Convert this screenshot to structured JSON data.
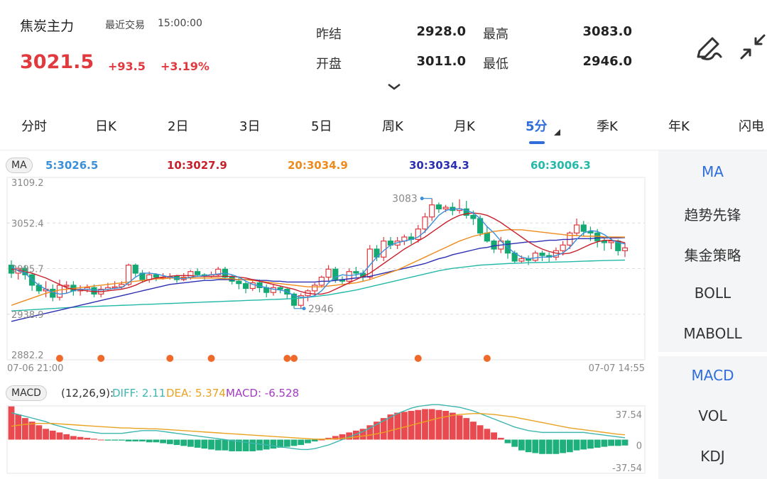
{
  "header": {
    "name": "焦炭主力",
    "last_trade_label": "最近交易",
    "last_trade_time": "15:00:00",
    "price": "3021.5",
    "change": "+93.5",
    "change_pct": "+3.19%"
  },
  "quotes": [
    {
      "label": "昨结",
      "value": "2928.0"
    },
    {
      "label": "最高",
      "value": "3083.0"
    },
    {
      "label": "开盘",
      "value": "3011.0"
    },
    {
      "label": "最低",
      "value": "2946.0"
    }
  ],
  "tabs": [
    "分时",
    "日K",
    "2日",
    "3日",
    "5日",
    "周K",
    "月K",
    "5分",
    "季K",
    "年K",
    "闪电"
  ],
  "active_tab": 7,
  "right_panel": [
    "MA",
    "趋势先锋",
    "集金策略",
    "BOLL",
    "MABOLL",
    "MACD",
    "VOL",
    "KDJ"
  ],
  "colors": {
    "up": "#e0393e",
    "down": "#14a873",
    "accent": "#2f6ddc",
    "ma5": "#3a8fd8",
    "ma10": "#c8202a",
    "ma20": "#ef8a1c",
    "ma30": "#2c2fb3",
    "ma60": "#23b9a8",
    "diff": "#3fb6b0",
    "dea": "#eaa321",
    "macd": "#a43bc4"
  },
  "icons": {
    "edit": "pen-icon",
    "collapse": "collapse-arrows-icon",
    "expand": "chevron-down-icon"
  },
  "chart_data": {
    "type": "candlestick",
    "ma_badge": "MA",
    "ma_legend": [
      {
        "label": "5:3026.5",
        "color": "#3a8fd8"
      },
      {
        "label": "10:3027.9",
        "color": "#c8202a"
      },
      {
        "label": "20:3034.9",
        "color": "#ef8a1c"
      },
      {
        "label": "30:3034.3",
        "color": "#2c2fb3"
      },
      {
        "label": "60:3006.3",
        "color": "#23b9a8"
      }
    ],
    "y_ticks": [
      "3109.2",
      "3052.4",
      "2995.7",
      "2938.9",
      "2882.2"
    ],
    "y_values": [
      3109.2,
      3052.4,
      2995.7,
      2938.9,
      2882.2
    ],
    "x_start": "07-06 21:00",
    "x_end": "07-07 14:55",
    "high_mark": "3083",
    "low_mark": "2946",
    "candles": [
      [
        3000,
        2990,
        3006,
        2984
      ],
      [
        2990,
        2996,
        2998,
        2982
      ],
      [
        2996,
        2988,
        3000,
        2982
      ],
      [
        2988,
        2975,
        2990,
        2968
      ],
      [
        2975,
        2968,
        2978,
        2964
      ],
      [
        2968,
        2970,
        2980,
        2960
      ],
      [
        2970,
        2960,
        2976,
        2955
      ],
      [
        2960,
        2975,
        2982,
        2956
      ],
      [
        2975,
        2975,
        2980,
        2965
      ],
      [
        2975,
        2968,
        2980,
        2962
      ],
      [
        2968,
        2970,
        2975,
        2962
      ],
      [
        2970,
        2972,
        2976,
        2966
      ],
      [
        2972,
        2964,
        2976,
        2960
      ],
      [
        2964,
        2970,
        2974,
        2960
      ],
      [
        2970,
        2972,
        2978,
        2968
      ],
      [
        2972,
        2973,
        2980,
        2970
      ],
      [
        2973,
        2976,
        2980,
        2970
      ],
      [
        2976,
        3000,
        3002,
        2974
      ],
      [
        3000,
        2990,
        3002,
        2986
      ],
      [
        2990,
        2982,
        2994,
        2978
      ],
      [
        2982,
        2988,
        2992,
        2978
      ],
      [
        2988,
        2985,
        2990,
        2980
      ],
      [
        2985,
        2985,
        2990,
        2982
      ],
      [
        2985,
        2986,
        2990,
        2982
      ],
      [
        2986,
        2982,
        2988,
        2978
      ],
      [
        2982,
        2985,
        2990,
        2980
      ],
      [
        2985,
        2992,
        2994,
        2982
      ],
      [
        2992,
        2988,
        2996,
        2986
      ],
      [
        2988,
        2986,
        2990,
        2982
      ],
      [
        2986,
        2988,
        2992,
        2984
      ],
      [
        2988,
        2995,
        2998,
        2986
      ],
      [
        2995,
        2985,
        2998,
        2982
      ],
      [
        2985,
        2980,
        2988,
        2976
      ],
      [
        2980,
        2977,
        2986,
        2970
      ],
      [
        2977,
        2971,
        2980,
        2965
      ],
      [
        2971,
        2978,
        2982,
        2968
      ],
      [
        2978,
        2972,
        2982,
        2966
      ],
      [
        2972,
        2966,
        2976,
        2960
      ],
      [
        2966,
        2972,
        2976,
        2962
      ],
      [
        2972,
        2970,
        2974,
        2965
      ],
      [
        2970,
        2964,
        2972,
        2958
      ],
      [
        2964,
        2950,
        2966,
        2946
      ],
      [
        2950,
        2962,
        2965,
        2946
      ],
      [
        2962,
        2968,
        2970,
        2955
      ],
      [
        2968,
        2975,
        2978,
        2962
      ],
      [
        2975,
        2985,
        2987,
        2972
      ],
      [
        2985,
        2995,
        3000,
        2980
      ],
      [
        2995,
        2982,
        2998,
        2978
      ],
      [
        2982,
        2980,
        2986,
        2976
      ],
      [
        2980,
        2992,
        2996,
        2976
      ],
      [
        2992,
        2990,
        2998,
        2985
      ],
      [
        2990,
        2985,
        2994,
        2980
      ],
      [
        2985,
        3020,
        3025,
        2982
      ],
      [
        3020,
        3010,
        3025,
        3005
      ],
      [
        3010,
        3030,
        3035,
        3005
      ],
      [
        3030,
        3025,
        3035,
        3020
      ],
      [
        3025,
        3030,
        3035,
        3020
      ],
      [
        3030,
        3035,
        3038,
        3025
      ],
      [
        3035,
        3032,
        3040,
        3026
      ],
      [
        3032,
        3045,
        3050,
        3028
      ],
      [
        3045,
        3060,
        3065,
        3040
      ],
      [
        3060,
        3075,
        3083,
        3055
      ],
      [
        3075,
        3070,
        3078,
        3065
      ],
      [
        3070,
        3072,
        3075,
        3066
      ],
      [
        3072,
        3068,
        3078,
        3062
      ],
      [
        3068,
        3070,
        3082,
        3064
      ],
      [
        3070,
        3062,
        3080,
        3058
      ],
      [
        3062,
        3058,
        3068,
        3050
      ],
      [
        3058,
        3040,
        3062,
        3036
      ],
      [
        3040,
        3030,
        3048,
        3028
      ],
      [
        3030,
        3020,
        3032,
        3015
      ],
      [
        3020,
        3030,
        3035,
        3015
      ],
      [
        3030,
        3015,
        3032,
        3008
      ],
      [
        3015,
        3005,
        3018,
        3002
      ],
      [
        3005,
        3008,
        3012,
        3002
      ],
      [
        3008,
        3006,
        3012,
        3000
      ],
      [
        3006,
        3015,
        3018,
        3004
      ],
      [
        3015,
        3012,
        3018,
        3005
      ],
      [
        3012,
        3010,
        3016,
        3004
      ],
      [
        3010,
        3018,
        3022,
        3006
      ],
      [
        3018,
        3025,
        3030,
        3012
      ],
      [
        3025,
        3040,
        3042,
        3020
      ],
      [
        3040,
        3050,
        3058,
        3036
      ],
      [
        3050,
        3042,
        3055,
        3036
      ],
      [
        3042,
        3040,
        3048,
        3030
      ],
      [
        3040,
        3030,
        3045,
        3022
      ],
      [
        3030,
        3028,
        3034,
        3018
      ],
      [
        3028,
        3030,
        3035,
        3020
      ],
      [
        3030,
        3018,
        3032,
        3012
      ],
      [
        3018,
        3021.5,
        3028,
        3010
      ]
    ],
    "ma5": [
      2998,
      2993,
      2990,
      2982,
      2975,
      2970,
      2966,
      2964,
      2965,
      2968,
      2970,
      2970,
      2969,
      2969,
      2970,
      2971,
      2972,
      2978,
      2985,
      2990,
      2990,
      2989,
      2987,
      2985,
      2984,
      2983,
      2985,
      2986,
      2987,
      2988,
      2989,
      2990,
      2988,
      2985,
      2980,
      2976,
      2974,
      2972,
      2970,
      2969,
      2967,
      2962,
      2960,
      2960,
      2962,
      2968,
      2978,
      2985,
      2988,
      2987,
      2988,
      2990,
      3000,
      3010,
      3018,
      3025,
      3028,
      3030,
      3032,
      3035,
      3042,
      3052,
      3062,
      3068,
      3070,
      3070,
      3068,
      3065,
      3058,
      3048,
      3040,
      3030,
      3022,
      3015,
      3010,
      3008,
      3009,
      3010,
      3010,
      3012,
      3015,
      3022,
      3032,
      3040,
      3043,
      3042,
      3038,
      3032,
      3028,
      3026.5
    ],
    "ma10": [
      2995,
      2994,
      2992,
      2990,
      2987,
      2984,
      2980,
      2976,
      2972,
      2970,
      2969,
      2968,
      2967,
      2967,
      2968,
      2969,
      2970,
      2972,
      2975,
      2979,
      2982,
      2984,
      2985,
      2986,
      2987,
      2987,
      2987,
      2986,
      2986,
      2986,
      2986,
      2986,
      2986,
      2985,
      2984,
      2982,
      2980,
      2978,
      2976,
      2974,
      2972,
      2970,
      2967,
      2965,
      2964,
      2964,
      2966,
      2970,
      2974,
      2978,
      2982,
      2986,
      2990,
      2996,
      3002,
      3008,
      3014,
      3020,
      3025,
      3030,
      3035,
      3041,
      3047,
      3053,
      3058,
      3062,
      3064,
      3065,
      3064,
      3062,
      3058,
      3053,
      3047,
      3041,
      3035,
      3029,
      3024,
      3020,
      3017,
      3015,
      3014,
      3015,
      3018,
      3022,
      3026,
      3029,
      3031,
      3031,
      3030,
      3027.9
    ],
    "ma20": [
      2950,
      2953,
      2956,
      2959,
      2962,
      2965,
      2967,
      2969,
      2970,
      2971,
      2972,
      2973,
      2974,
      2975,
      2976,
      2977,
      2978,
      2979,
      2980,
      2981,
      2982,
      2983,
      2983,
      2984,
      2984,
      2984,
      2984,
      2984,
      2984,
      2984,
      2984,
      2983,
      2983,
      2982,
      2982,
      2981,
      2980,
      2979,
      2978,
      2977,
      2976,
      2975,
      2974,
      2973,
      2973,
      2973,
      2974,
      2975,
      2976,
      2977,
      2978,
      2980,
      2982,
      2985,
      2988,
      2991,
      2994,
      2998,
      3002,
      3006,
      3010,
      3014,
      3018,
      3022,
      3026,
      3030,
      3033,
      3036,
      3038,
      3040,
      3042,
      3043,
      3044,
      3044,
      3044,
      3043,
      3042,
      3041,
      3040,
      3039,
      3038,
      3037,
      3037,
      3036,
      3036,
      3036,
      3035,
      3035,
      3035,
      3034.9
    ],
    "ma30": [
      2930,
      2932,
      2934,
      2936,
      2938,
      2940,
      2942,
      2944,
      2946,
      2948,
      2950,
      2952,
      2954,
      2956,
      2958,
      2960,
      2962,
      2964,
      2966,
      2968,
      2970,
      2972,
      2974,
      2976,
      2977,
      2978,
      2979,
      2980,
      2981,
      2981,
      2982,
      2982,
      2982,
      2982,
      2982,
      2982,
      2981,
      2981,
      2980,
      2980,
      2979,
      2979,
      2979,
      2979,
      2979,
      2980,
      2980,
      2981,
      2982,
      2983,
      2984,
      2985,
      2986,
      2988,
      2990,
      2992,
      2994,
      2996,
      2998,
      3000,
      3002,
      3005,
      3008,
      3010,
      3013,
      3015,
      3017,
      3019,
      3021,
      3022,
      3024,
      3025,
      3026,
      3027,
      3028,
      3029,
      3029,
      3030,
      3031,
      3031,
      3032,
      3032,
      3033,
      3033,
      3033,
      3034,
      3034,
      3034,
      3034,
      3034.3
    ],
    "ma60": [
      2943,
      2943.5,
      2944,
      2944.5,
      2945,
      2945.5,
      2946,
      2946.5,
      2947,
      2947.5,
      2948,
      2948.3,
      2948.6,
      2949,
      2949.3,
      2949.6,
      2950,
      2950.3,
      2950.6,
      2951,
      2951.3,
      2951.6,
      2952,
      2952.3,
      2952.6,
      2953,
      2953.3,
      2953.6,
      2954,
      2954.3,
      2954.6,
      2955,
      2955.3,
      2955.6,
      2956,
      2956.3,
      2956.6,
      2957,
      2957.3,
      2957.6,
      2958,
      2958.5,
      2959,
      2960,
      2961,
      2962,
      2963,
      2964.5,
      2966,
      2967.5,
      2969,
      2971,
      2973,
      2975,
      2977,
      2979,
      2981,
      2983,
      2985,
      2987,
      2989,
      2991,
      2993,
      2994.5,
      2996,
      2997,
      2998,
      2999,
      3000,
      3000.5,
      3001,
      3001.5,
      3002,
      3002.3,
      3002.6,
      3003,
      3003.2,
      3003.4,
      3003.6,
      3003.8,
      3004,
      3004.3,
      3004.6,
      3004.9,
      3005.2,
      3005.5,
      3005.7,
      3005.9,
      3006.1,
      3006.3
    ],
    "signal_marks_index": [
      7,
      13,
      23,
      29,
      40,
      41,
      59,
      69
    ],
    "macd": {
      "badge": "MACD",
      "params": "(12,26,9):",
      "labels": [
        "DIFF: 2.11",
        "DEA: 5.374",
        "MACD: -6.528"
      ],
      "y_ticks": [
        "37.54",
        "0",
        "-37.54"
      ],
      "ylim": [
        -37.54,
        37.54
      ],
      "diff": [
        30,
        28,
        26,
        24,
        22,
        20,
        17,
        15,
        13,
        11,
        10,
        9,
        8,
        7,
        7,
        7,
        7,
        8,
        9,
        10,
        10,
        10,
        9,
        8,
        7,
        6,
        5,
        4,
        3,
        2,
        1,
        0,
        -1,
        -2,
        -3,
        -4,
        -5,
        -6,
        -7,
        -8,
        -9,
        -10,
        -11,
        -11,
        -10,
        -8,
        -6,
        -3,
        0,
        3,
        6,
        9,
        13,
        17,
        21,
        25,
        29,
        32,
        35,
        37,
        38,
        39,
        39,
        38,
        37,
        36,
        34,
        32,
        29,
        26,
        23,
        20,
        17,
        14,
        12,
        10,
        9,
        8,
        8,
        8,
        8,
        8,
        8,
        8,
        7,
        6,
        5,
        4,
        3,
        2.11
      ],
      "dea": [
        15,
        16,
        17,
        17.5,
        18,
        18,
        18,
        17.5,
        17,
        16.5,
        16,
        15.5,
        15,
        14.5,
        14,
        13.5,
        13,
        13,
        12.5,
        12.5,
        12,
        12,
        11.5,
        11,
        10.5,
        10,
        9.5,
        9,
        8.5,
        8,
        7.5,
        7,
        6.5,
        6,
        5.5,
        5,
        4.5,
        4,
        3.5,
        3,
        2.5,
        2,
        1.5,
        1,
        0.5,
        0.5,
        0.5,
        1,
        1.5,
        2,
        3,
        4,
        5,
        6.5,
        8,
        10,
        12,
        14,
        16,
        18,
        20,
        22,
        24,
        25.5,
        27,
        28,
        28.5,
        29,
        29,
        28.5,
        28,
        27,
        26,
        25,
        23.5,
        22,
        20.5,
        19,
        17.5,
        16,
        14.5,
        13,
        12,
        11,
        10,
        9,
        8,
        7,
        6,
        5.374
      ],
      "hist": [
        37,
        28,
        24,
        20,
        16,
        12,
        10,
        8,
        6,
        4,
        3,
        2,
        1,
        0,
        -1,
        -1,
        -1,
        -2,
        -2,
        -2,
        -3,
        -3,
        -4,
        -5,
        -6,
        -7,
        -8,
        -9,
        -10,
        -11,
        -12,
        -12,
        -13,
        -13,
        -13,
        -13,
        -12,
        -11,
        -10,
        -9,
        -8,
        -7,
        -6,
        -4,
        -2,
        0,
        2,
        4,
        6,
        8,
        10,
        12,
        16,
        20,
        24,
        28,
        30,
        31,
        32,
        33,
        34,
        34,
        33,
        32,
        30,
        27,
        24,
        20,
        16,
        12,
        8,
        2,
        -4,
        -8,
        -12,
        -14,
        -15,
        -16,
        -16,
        -16,
        -15,
        -14,
        -12,
        -11,
        -10,
        -9,
        -8,
        -7,
        -7,
        -6.528
      ]
    }
  }
}
